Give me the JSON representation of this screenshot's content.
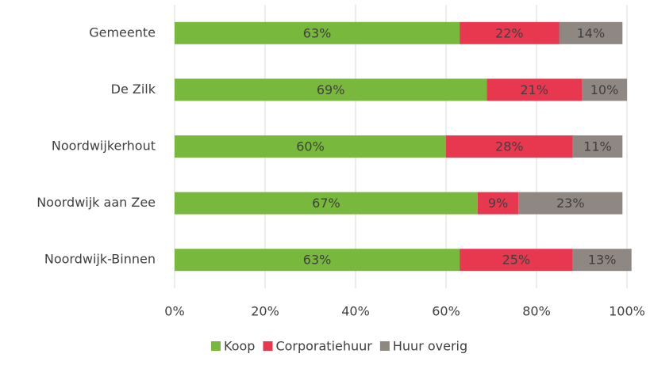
{
  "chart_data": {
    "type": "stacked-bar-horizontal",
    "categories": [
      "Gemeente",
      "De Zilk",
      "Noordwijkerhout",
      "Noordwijk aan Zee",
      "Noordwijk-Binnen"
    ],
    "series": [
      {
        "name": "Koop",
        "color": "#78b83c",
        "values": [
          63,
          69,
          60,
          67,
          63
        ],
        "value_labels": [
          "63%",
          "69%",
          "60%",
          "67%",
          "63%"
        ]
      },
      {
        "name": "Corporatiehuur",
        "color": "#e8384f",
        "values": [
          22,
          21,
          28,
          9,
          25
        ],
        "value_labels": [
          "22%",
          "21%",
          "28%",
          "9%",
          "25%"
        ]
      },
      {
        "name": "Huur overig",
        "color": "#8f8781",
        "values": [
          14,
          10,
          11,
          23,
          13
        ],
        "value_labels": [
          "14%",
          "10%",
          "11%",
          "23%",
          "13%"
        ]
      }
    ],
    "xlim": [
      0,
      100
    ],
    "xticks": [
      {
        "value": 0,
        "label": "0%"
      },
      {
        "value": 20,
        "label": "20%"
      },
      {
        "value": 40,
        "label": "40%"
      },
      {
        "value": 60,
        "label": "60%"
      },
      {
        "value": 80,
        "label": "80%"
      },
      {
        "value": 100,
        "label": "100%"
      }
    ],
    "grid": true,
    "legend": "bottom"
  }
}
